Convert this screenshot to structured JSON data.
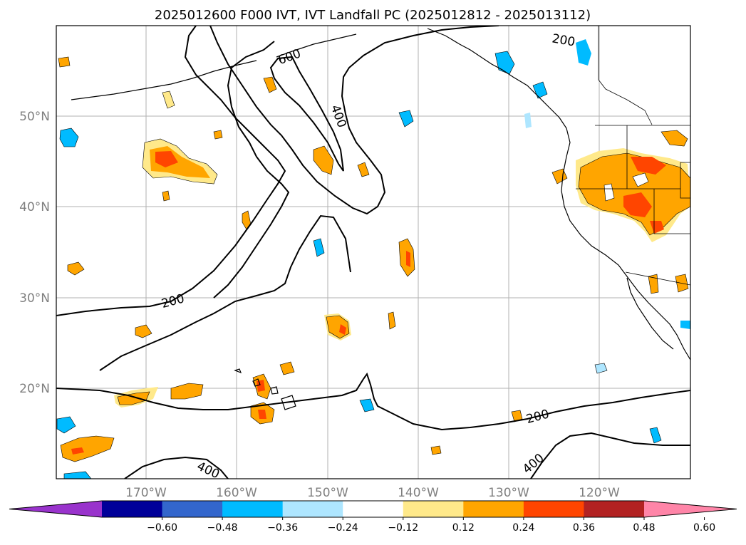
{
  "title": "2025012600 F000 IVT, IVT Landfall PC (2025012812 - 2025013112)",
  "map": {
    "lat_labels": [
      "50°N",
      "40°N",
      "30°N",
      "20°N"
    ],
    "lon_labels": [
      "170°W",
      "160°W",
      "150°W",
      "140°W",
      "130°W",
      "120°W"
    ],
    "contour_labels": [
      "600",
      "400",
      "200",
      "200",
      "200",
      "400",
      "400"
    ],
    "grid": true
  },
  "colorbar": {
    "ticks": [
      "−0.60",
      "−0.48",
      "−0.36",
      "−0.24",
      "−0.12",
      "0.12",
      "0.24",
      "0.36",
      "0.48",
      "0.60"
    ],
    "colors": [
      "#9933cc",
      "#000099",
      "#3366cc",
      "#00bbff",
      "#aee6ff",
      "#ffffff",
      "#ffe98a",
      "#ffa500",
      "#ff4500",
      "#b22222",
      "#ff85a8"
    ]
  }
}
